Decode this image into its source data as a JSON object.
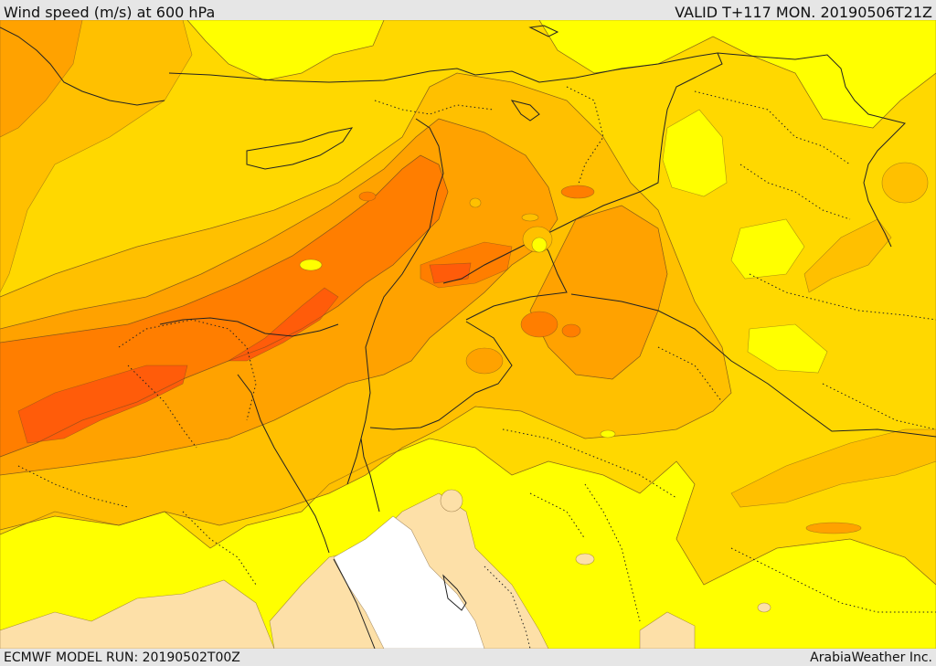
{
  "header": {
    "title": "Wind speed (m/s) at 600 hPa",
    "valid": "VALID T+117 MON. 20190506T21Z"
  },
  "footer": {
    "model_run": "ECMWF MODEL RUN: 20190502T00Z",
    "credit": "ArabiaWeather Inc."
  },
  "map": {
    "variable": "Wind speed",
    "units": "m/s",
    "level_hpa": 600,
    "colors": {
      "lowest": "#ffffff",
      "very_low": "#fde0a8",
      "low": "#ffff00",
      "moderate": "#ffd800",
      "fresh": "#ffc000",
      "strong": "#ffa200",
      "very_strong": "#ff7e00",
      "max": "#ff5c0a"
    },
    "line_color": "#222222"
  }
}
